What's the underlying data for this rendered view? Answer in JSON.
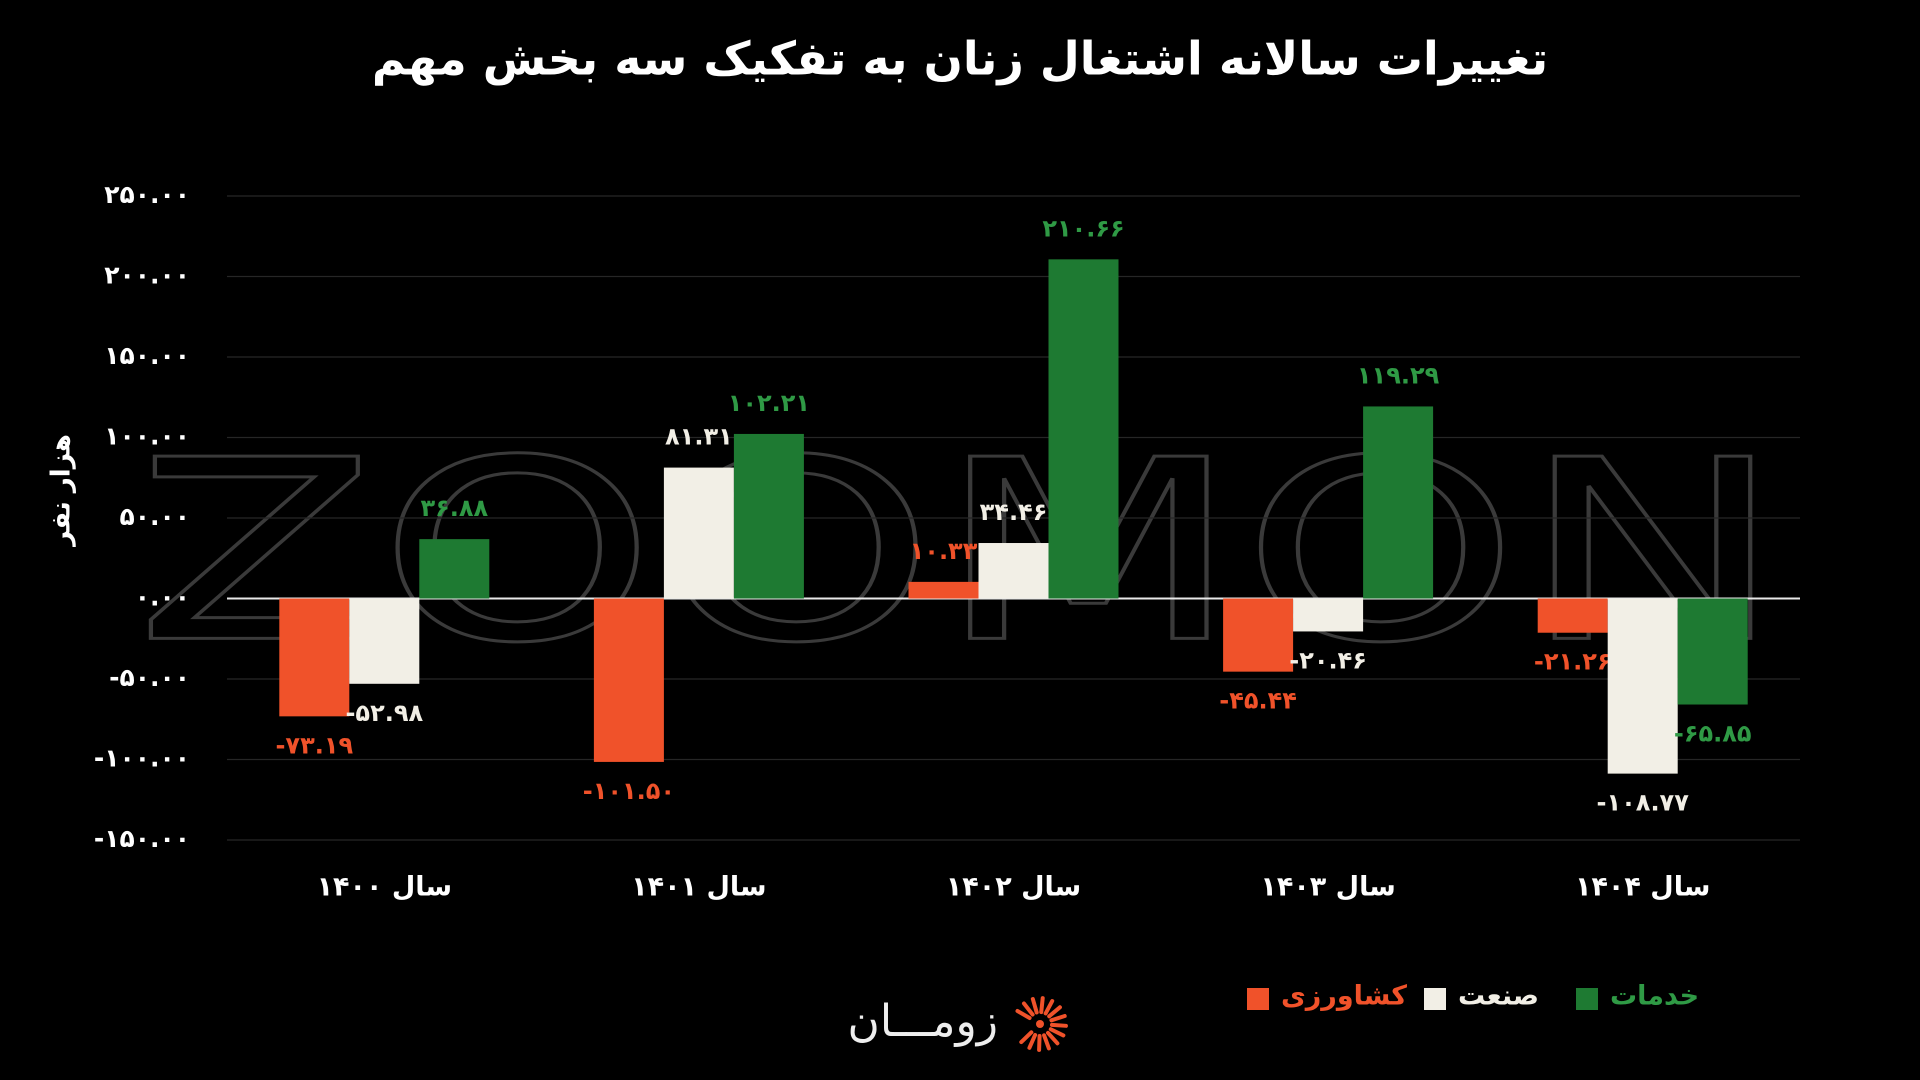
{
  "chart_data": {
    "type": "bar",
    "title": "تغییرات سالانه اشتغال زنان به تفکیک سه بخش مهم",
    "y_label": "هزار نفر",
    "watermark": "ZOOMON",
    "logo_text": "زومـــان",
    "categories": [
      "سال ۱۴۰۰",
      "سال ۱۴۰۱",
      "سال ۱۴۰۲",
      "سال ۱۴۰۳",
      "سال ۱۴۰۴"
    ],
    "series": [
      {
        "name": "کشاورزی",
        "color": "#f0522a",
        "values": [
          -73.19,
          -101.5,
          10.33,
          -45.44,
          -21.26
        ],
        "value_labels": [
          "-۷۳.۱۹",
          "-۱۰۱.۵۰",
          "۱۰.۳۳",
          "-۴۵.۴۴",
          "-۲۱.۲۶"
        ]
      },
      {
        "name": "صنعت",
        "color": "#f2efe6",
        "values": [
          -52.98,
          81.31,
          34.46,
          -20.46,
          -108.77
        ],
        "value_labels": [
          "-۵۲.۹۸",
          "۸۱.۳۱",
          "۳۴.۴۶",
          "-۲۰.۴۶",
          "-۱۰۸.۷۷"
        ]
      },
      {
        "name": "خدمات",
        "color": "#1e7a32",
        "values": [
          36.88,
          102.21,
          210.66,
          119.29,
          -65.85
        ],
        "value_labels": [
          "۳۶.۸۸",
          "۱۰۲.۲۱",
          "۲۱۰.۶۶",
          "۱۱۹.۲۹",
          "-۶۵.۸۵"
        ]
      }
    ],
    "ylim": [
      -150,
      250
    ],
    "yticks": [
      {
        "value": 250,
        "label": "۲۵۰.۰۰"
      },
      {
        "value": 200,
        "label": "۲۰۰.۰۰"
      },
      {
        "value": 150,
        "label": "۱۵۰.۰۰"
      },
      {
        "value": 100,
        "label": "۱۰۰.۰۰"
      },
      {
        "value": 50,
        "label": "۵۰.۰۰"
      },
      {
        "value": 0,
        "label": "۰.۰۰"
      },
      {
        "value": -50,
        "label": "-۵۰.۰۰"
      },
      {
        "value": -100,
        "label": "-۱۰۰.۰۰"
      },
      {
        "value": -150,
        "label": "-۱۵۰.۰۰"
      }
    ],
    "grid": true
  }
}
